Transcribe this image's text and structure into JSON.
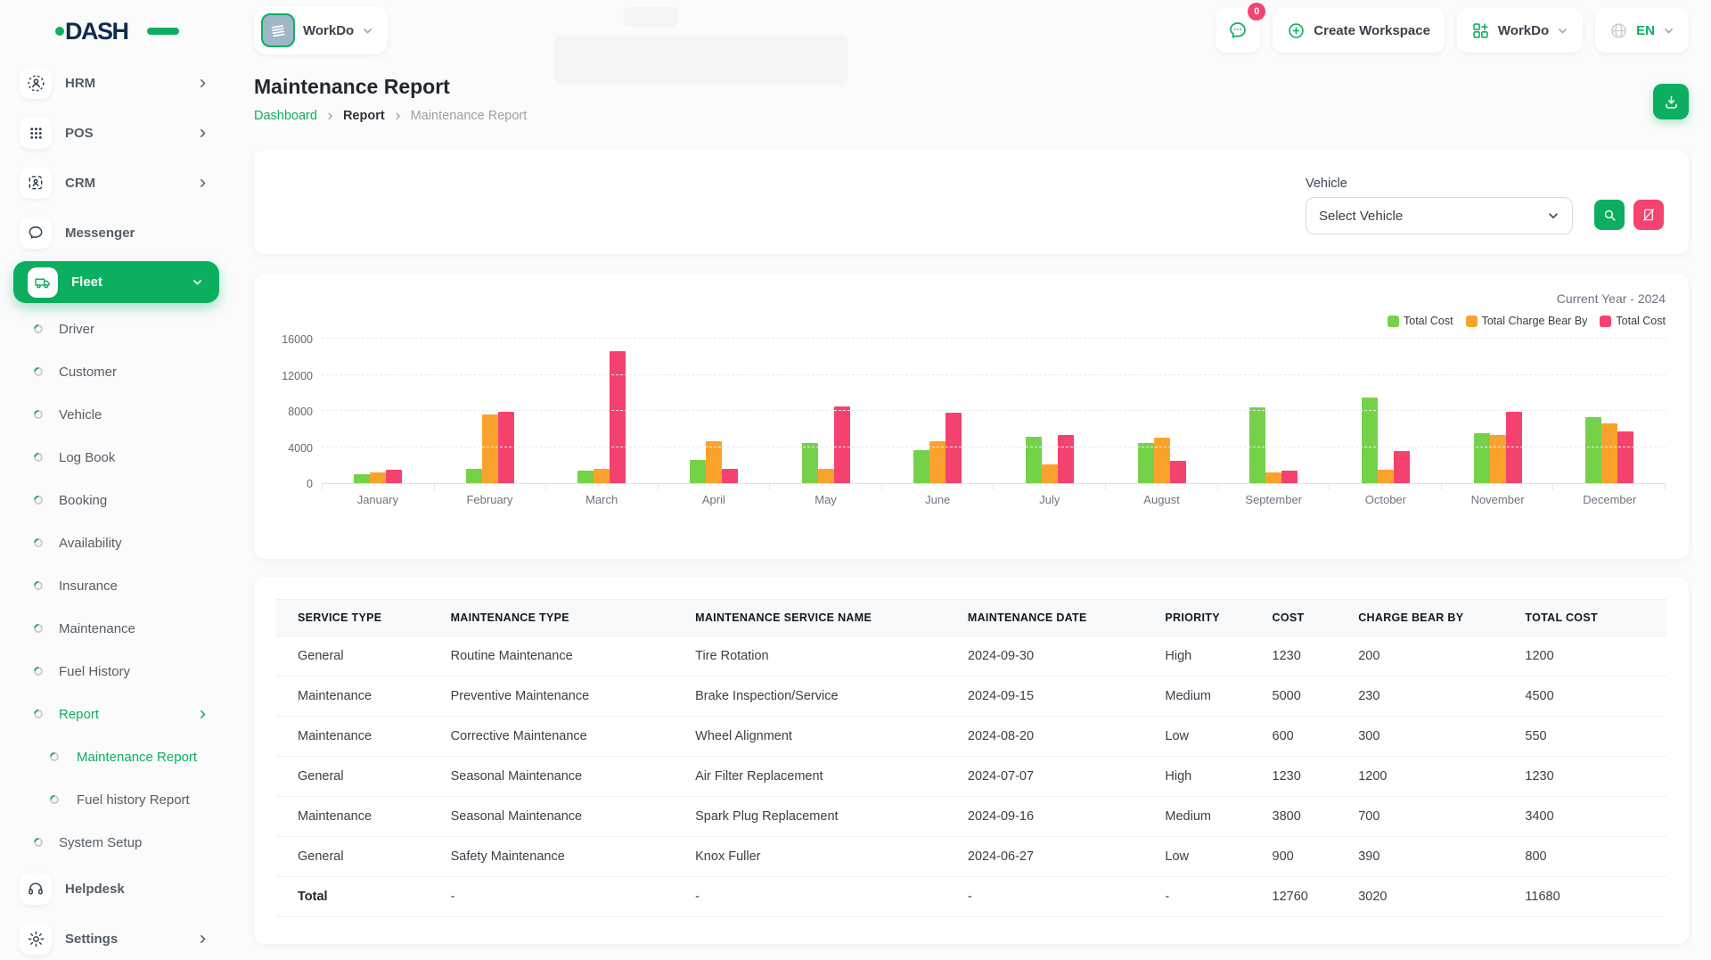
{
  "brand": {
    "name": "DASH",
    "accent": "#0CAF60"
  },
  "topbar": {
    "workspace_switcher": {
      "label": "WorkDo"
    },
    "messages": {
      "badge": "0"
    },
    "create_workspace": {
      "label": "Create Workspace"
    },
    "workdo_menu": {
      "label": "WorkDo"
    },
    "language": {
      "code": "EN"
    }
  },
  "sidebar": {
    "items": [
      {
        "label": "HRM"
      },
      {
        "label": "POS"
      },
      {
        "label": "CRM"
      },
      {
        "label": "Messenger"
      },
      {
        "label": "Fleet"
      },
      {
        "label": "Driver"
      },
      {
        "label": "Customer"
      },
      {
        "label": "Vehicle"
      },
      {
        "label": "Log Book"
      },
      {
        "label": "Booking"
      },
      {
        "label": "Availability"
      },
      {
        "label": "Insurance"
      },
      {
        "label": "Maintenance"
      },
      {
        "label": "Fuel History"
      },
      {
        "label": "Report"
      },
      {
        "label": "Maintenance Report"
      },
      {
        "label": "Fuel history Report"
      },
      {
        "label": "System Setup"
      },
      {
        "label": "Helpdesk"
      },
      {
        "label": "Settings"
      }
    ]
  },
  "page": {
    "title": "Maintenance Report",
    "breadcrumb": {
      "items": [
        "Dashboard",
        "Report",
        "Maintenance Report"
      ]
    }
  },
  "filters": {
    "vehicle_label": "Vehicle",
    "vehicle_value": "Select Vehicle"
  },
  "colors": {
    "accent_green": "#0CAF60",
    "accent_pink": "#F4436F",
    "chart_green": "#75D14A",
    "chart_orange": "#F9A32C",
    "chart_pink": "#F4426E"
  },
  "chart_data": {
    "type": "bar",
    "title": "Current Year - 2024",
    "categories": [
      "January",
      "February",
      "March",
      "April",
      "May",
      "June",
      "July",
      "August",
      "September",
      "October",
      "November",
      "December"
    ],
    "series": [
      {
        "name": "Total Cost",
        "color": "#75D14A",
        "values": [
          1000,
          1600,
          1400,
          2600,
          4400,
          3700,
          5100,
          4400,
          8400,
          9500,
          5500,
          7300
        ]
      },
      {
        "name": "Total Charge Bear By",
        "color": "#F9A32C",
        "values": [
          1200,
          7600,
          1600,
          4600,
          1600,
          4600,
          2100,
          5000,
          1200,
          1500,
          5300,
          6600
        ]
      },
      {
        "name": "Total Cost",
        "color": "#F4426E",
        "values": [
          1500,
          7900,
          14600,
          1600,
          8500,
          7800,
          5300,
          2500,
          1400,
          3600,
          7900,
          5700
        ]
      }
    ],
    "xlabel": "",
    "ylabel": "",
    "ylim": [
      0,
      16000
    ],
    "yticks": [
      0,
      4000,
      8000,
      12000,
      16000
    ],
    "grid": true,
    "legend_position": "top-right"
  },
  "table": {
    "headers": [
      "SERVICE TYPE",
      "MAINTENANCE TYPE",
      "MAINTENANCE SERVICE NAME",
      "MAINTENANCE DATE",
      "PRIORITY",
      "COST",
      "CHARGE BEAR BY",
      "TOTAL COST"
    ],
    "col_widths_pct": [
      11.0,
      17.6,
      19.6,
      14.2,
      7.7,
      6.2,
      12.0,
      11.7
    ],
    "rows": [
      [
        "General",
        "Routine Maintenance",
        "Tire Rotation",
        "2024-09-30",
        "High",
        "1230",
        "200",
        "1200"
      ],
      [
        "Maintenance",
        "Preventive Maintenance",
        "Brake Inspection/Service",
        "2024-09-15",
        "Medium",
        "5000",
        "230",
        "4500"
      ],
      [
        "Maintenance",
        "Corrective Maintenance",
        "Wheel Alignment",
        "2024-08-20",
        "Low",
        "600",
        "300",
        "550"
      ],
      [
        "General",
        "Seasonal Maintenance",
        "Air Filter Replacement",
        "2024-07-07",
        "High",
        "1230",
        "1200",
        "1230"
      ],
      [
        "Maintenance",
        "Seasonal Maintenance",
        "Spark Plug Replacement",
        "2024-09-16",
        "Medium",
        "3800",
        "700",
        "3400"
      ],
      [
        "General",
        "Safety Maintenance",
        "Knox Fuller",
        "2024-06-27",
        "Low",
        "900",
        "390",
        "800"
      ]
    ],
    "total_row": [
      "Total",
      "-",
      "-",
      "-",
      "-",
      "12760",
      "3020",
      "11680"
    ]
  }
}
